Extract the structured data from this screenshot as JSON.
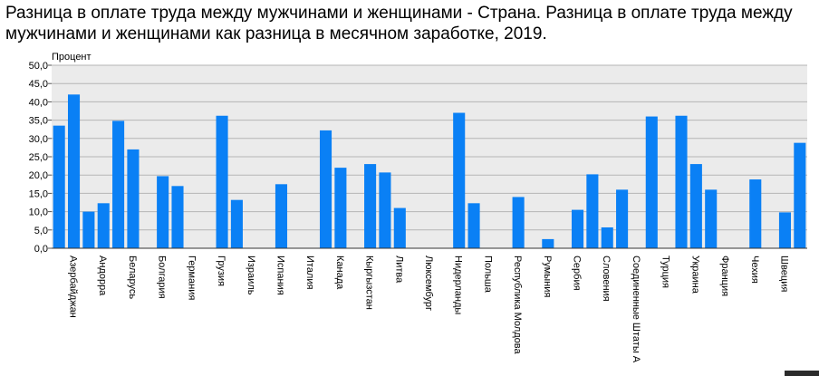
{
  "chart_data": {
    "type": "bar",
    "title": "Разница в оплате труда между мужчинами и женщинами - Страна. Разница в оплате труда между мужчинами и женщинами как разница в месячном заработке, 2019.",
    "ylabel": "Процент",
    "xlabel": "",
    "ylim": [
      0,
      50
    ],
    "yticks": [
      "0,0",
      "5,0",
      "10,0",
      "15,0",
      "20,0",
      "25,0",
      "30,0",
      "35,0",
      "40,0",
      "45,0",
      "50,0"
    ],
    "grid": true,
    "bar_color": "#0a80f5",
    "plot_background": "#ebebeb",
    "categories": [
      "",
      "Азербайджан",
      "",
      "Андорра",
      "",
      "Беларусь",
      "",
      "Болгария",
      "",
      "Германия",
      "",
      "Грузия",
      "",
      "Израиль",
      "",
      "Испания",
      "",
      "Италия",
      "",
      "Канада",
      "",
      "Кыргызстан",
      "",
      "Литва",
      "",
      "Люксембург",
      "",
      "Нидерланды",
      "",
      "Польша",
      "",
      "Республика Молдова",
      "",
      "Румыния",
      "",
      "Сербия",
      "",
      "Словения",
      "",
      "Соединенные Штаты А",
      "",
      "Турция",
      "",
      "Украина",
      "",
      "Франция",
      "",
      "Чехия",
      "",
      "Швеция",
      ""
    ],
    "values": [
      33.5,
      42.0,
      10.0,
      12.3,
      34.8,
      27.0,
      null,
      19.7,
      17.0,
      null,
      null,
      36.2,
      13.2,
      null,
      null,
      17.5,
      null,
      null,
      32.2,
      22.0,
      null,
      23.0,
      20.7,
      11.0,
      null,
      null,
      null,
      37.0,
      12.3,
      null,
      null,
      14.0,
      null,
      2.5,
      null,
      10.5,
      20.2,
      5.7,
      16.0,
      null,
      36.0,
      null,
      36.2,
      23.0,
      16.0,
      null,
      null,
      18.8,
      null,
      9.8,
      28.8
    ]
  }
}
